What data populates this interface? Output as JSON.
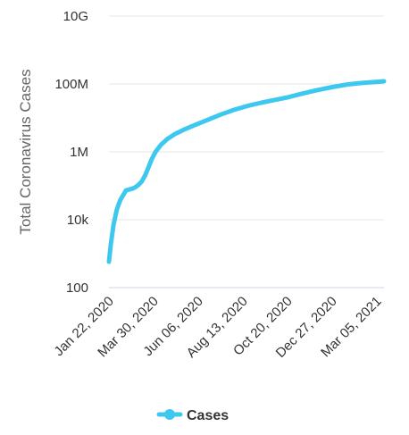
{
  "chart_data": {
    "type": "line",
    "title": "",
    "ylabel": "Total Coronavirus Cases",
    "xlabel": "",
    "y_scale": "log",
    "ylim": [
      100,
      10000000000
    ],
    "xlim": [
      "2020-01-22",
      "2021-03-16"
    ],
    "grid": true,
    "legend_position": "bottom-center",
    "y_ticks": [
      {
        "value": 100,
        "label": "100"
      },
      {
        "value": 10000,
        "label": "10k"
      },
      {
        "value": 1000000,
        "label": "1M"
      },
      {
        "value": 100000000,
        "label": "100M"
      },
      {
        "value": 10000000000,
        "label": "10G"
      }
    ],
    "x_ticks": [
      {
        "date": "2020-01-22",
        "label": "Jan 22, 2020"
      },
      {
        "date": "2020-03-30",
        "label": "Mar 30, 2020"
      },
      {
        "date": "2020-06-06",
        "label": "Jun 06, 2020"
      },
      {
        "date": "2020-08-13",
        "label": "Aug 13, 2020"
      },
      {
        "date": "2020-10-20",
        "label": "Oct 20, 2020"
      },
      {
        "date": "2020-12-27",
        "label": "Dec 27, 2020"
      },
      {
        "date": "2021-03-05",
        "label": "Mar 05, 2021"
      }
    ],
    "series": [
      {
        "name": "Cases",
        "color": "#3ec8f0",
        "points": [
          {
            "x": "2020-01-22",
            "y": 580
          },
          {
            "x": "2020-01-25",
            "y": 2000
          },
          {
            "x": "2020-01-29",
            "y": 7000
          },
          {
            "x": "2020-02-03",
            "y": 20000
          },
          {
            "x": "2020-02-08",
            "y": 37000
          },
          {
            "x": "2020-02-12",
            "y": 50000
          },
          {
            "x": "2020-02-17",
            "y": 73000
          },
          {
            "x": "2020-02-22",
            "y": 78000
          },
          {
            "x": "2020-02-27",
            "y": 83000
          },
          {
            "x": "2020-03-02",
            "y": 90000
          },
          {
            "x": "2020-03-07",
            "y": 106000
          },
          {
            "x": "2020-03-12",
            "y": 135000
          },
          {
            "x": "2020-03-17",
            "y": 200000
          },
          {
            "x": "2020-03-22",
            "y": 340000
          },
          {
            "x": "2020-03-27",
            "y": 600000
          },
          {
            "x": "2020-04-02",
            "y": 1000000
          },
          {
            "x": "2020-04-10",
            "y": 1600000
          },
          {
            "x": "2020-04-20",
            "y": 2400000
          },
          {
            "x": "2020-05-01",
            "y": 3300000
          },
          {
            "x": "2020-05-15",
            "y": 4500000
          },
          {
            "x": "2020-06-01",
            "y": 6200000
          },
          {
            "x": "2020-06-20",
            "y": 8700000
          },
          {
            "x": "2020-07-10",
            "y": 12500000
          },
          {
            "x": "2020-08-01",
            "y": 17700000
          },
          {
            "x": "2020-08-20",
            "y": 22500000
          },
          {
            "x": "2020-09-10",
            "y": 28000000
          },
          {
            "x": "2020-10-01",
            "y": 34000000
          },
          {
            "x": "2020-10-20",
            "y": 40000000
          },
          {
            "x": "2020-11-10",
            "y": 51000000
          },
          {
            "x": "2020-12-01",
            "y": 64000000
          },
          {
            "x": "2020-12-27",
            "y": 81000000
          },
          {
            "x": "2021-01-20",
            "y": 97000000
          },
          {
            "x": "2021-02-10",
            "y": 107000000
          },
          {
            "x": "2021-03-05",
            "y": 116000000
          },
          {
            "x": "2021-03-16",
            "y": 120000000
          }
        ]
      }
    ]
  }
}
